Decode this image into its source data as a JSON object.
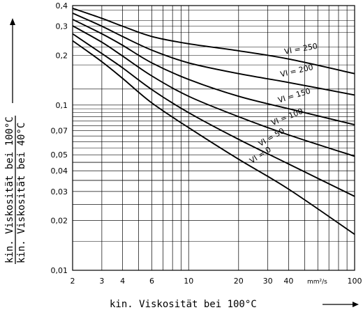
{
  "chart_data": {
    "type": "line",
    "x_scale": "log",
    "y_scale": "log",
    "xlim": [
      2,
      100
    ],
    "ylim": [
      0.01,
      0.4
    ],
    "grid": true,
    "x_ticks": [
      {
        "value": 2,
        "label": "2"
      },
      {
        "value": 3,
        "label": "3"
      },
      {
        "value": 4,
        "label": "4"
      },
      {
        "value": 6,
        "label": "6"
      },
      {
        "value": 10,
        "label": "10"
      },
      {
        "value": 20,
        "label": "20"
      },
      {
        "value": 30,
        "label": "30"
      },
      {
        "value": 40,
        "label": "40"
      },
      {
        "value": 100,
        "label": "100"
      }
    ],
    "x_unit": "mm²/s",
    "y_ticks": [
      {
        "value": 0.4,
        "label": "0,4"
      },
      {
        "value": 0.3,
        "label": "0,3"
      },
      {
        "value": 0.2,
        "label": "0,2"
      },
      {
        "value": 0.1,
        "label": "0,1"
      },
      {
        "value": 0.07,
        "label": "0,07"
      },
      {
        "value": 0.05,
        "label": "0,05"
      },
      {
        "value": 0.04,
        "label": "0,04"
      },
      {
        "value": 0.03,
        "label": "0,03"
      },
      {
        "value": 0.02,
        "label": "0,02"
      },
      {
        "value": 0.01,
        "label": "0,01"
      }
    ],
    "xlabel": "kin. Viskosität bei 100°C",
    "ylabel_numerator": "kin. Viskosität bei 100°C",
    "ylabel_denominator": "kin. Viskosität bei 40°C",
    "series": [
      {
        "name": "VI = 250",
        "x": [
          2,
          3,
          4,
          6,
          10,
          20,
          40,
          100
        ],
        "y": [
          0.385,
          0.335,
          0.3,
          0.26,
          0.235,
          0.213,
          0.19,
          0.155
        ]
      },
      {
        "name": "VI = 200",
        "x": [
          2,
          3,
          4,
          6,
          10,
          20,
          40,
          100
        ],
        "y": [
          0.36,
          0.3,
          0.26,
          0.215,
          0.18,
          0.155,
          0.137,
          0.115
        ]
      },
      {
        "name": "VI = 150",
        "x": [
          2,
          3,
          4,
          6,
          10,
          20,
          40,
          100
        ],
        "y": [
          0.33,
          0.27,
          0.23,
          0.18,
          0.143,
          0.113,
          0.095,
          0.076
        ]
      },
      {
        "name": "VI = 100",
        "x": [
          2,
          3,
          4,
          6,
          10,
          20,
          40,
          100
        ],
        "y": [
          0.302,
          0.24,
          0.198,
          0.15,
          0.113,
          0.085,
          0.066,
          0.049
        ]
      },
      {
        "name": "VI = 50",
        "x": [
          2,
          3,
          4,
          6,
          10,
          20,
          40,
          100
        ],
        "y": [
          0.27,
          0.205,
          0.168,
          0.124,
          0.09,
          0.062,
          0.044,
          0.028
        ]
      },
      {
        "name": "VI = 0",
        "x": [
          2,
          3,
          4,
          6,
          10,
          20,
          40,
          100
        ],
        "y": [
          0.245,
          0.183,
          0.145,
          0.103,
          0.073,
          0.047,
          0.031,
          0.0165
        ]
      }
    ]
  }
}
